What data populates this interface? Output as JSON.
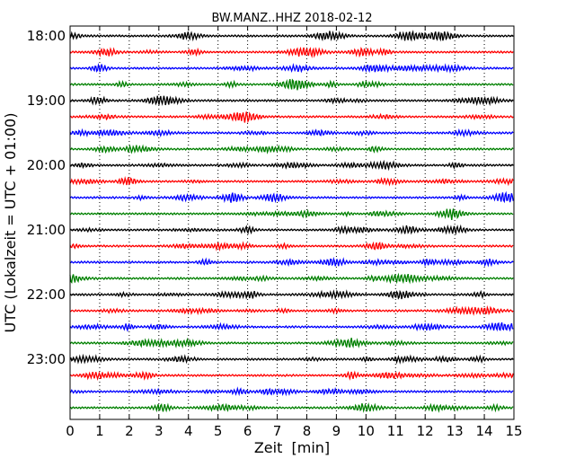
{
  "chart_data": {
    "type": "line",
    "title": "BW.MANZ..HHZ 2018-02-12",
    "xlabel": "Zeit  [min]",
    "ylabel": "UTC (Lokalzeit = UTC + 01:00)",
    "xlim": [
      0,
      15
    ],
    "x_ticks": [
      0,
      1,
      2,
      3,
      4,
      5,
      6,
      7,
      8,
      9,
      10,
      11,
      12,
      13,
      14,
      15
    ],
    "x_tick_labels": [
      "0",
      "1",
      "2",
      "3",
      "4",
      "5",
      "6",
      "7",
      "8",
      "9",
      "10",
      "11",
      "12",
      "13",
      "14",
      "15"
    ],
    "y_ticks": [
      "18:00",
      "19:00",
      "20:00",
      "21:00",
      "22:00",
      "23:00"
    ],
    "trace_start": "18:00",
    "trace_interval_minutes": 15,
    "trace_count": 24,
    "trace_colors": [
      "#000000",
      "#ff0000",
      "#0000ff",
      "#008000"
    ],
    "vertical_grid": true,
    "grid_style": "dotted"
  }
}
